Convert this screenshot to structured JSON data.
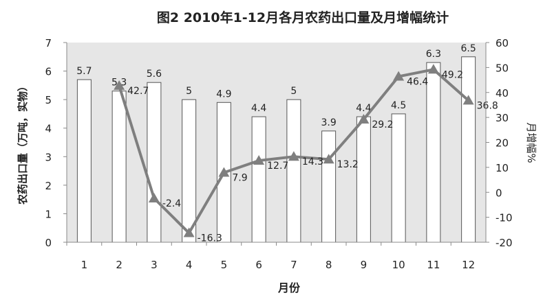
{
  "chart_data": {
    "type": "bar+line",
    "title": "图2 2010年1-12月各月农药出口量及月增幅统计",
    "xlabel": "月份",
    "ylabel": "农药出口量（万吨，实物）",
    "y2label": "月增幅%",
    "categories": [
      "1",
      "2",
      "3",
      "4",
      "5",
      "6",
      "7",
      "8",
      "9",
      "10",
      "11",
      "12"
    ],
    "ylim": [
      0,
      7
    ],
    "y2lim": [
      -20,
      60
    ],
    "yticks": [
      0,
      1,
      2,
      3,
      4,
      5,
      6,
      7
    ],
    "y2ticks": [
      -20,
      -10,
      0,
      10,
      20,
      30,
      40,
      50,
      60
    ],
    "series": [
      {
        "type": "bar",
        "axis": "left",
        "values": [
          5.7,
          5.3,
          5.6,
          5,
          4.9,
          4.4,
          5,
          3.9,
          4.4,
          4.5,
          6.3,
          6.5
        ]
      },
      {
        "type": "line",
        "axis": "right",
        "marker": "triangle",
        "values": [
          null,
          42.7,
          -2.4,
          -16.3,
          7.9,
          12.7,
          14.3,
          13.2,
          29.2,
          46.4,
          49.2,
          36.8
        ]
      }
    ],
    "colors": {
      "plot_bg": "#e6e6e6",
      "bar_fill": "#ffffff",
      "bar_stroke": "#555555",
      "line": "#7f7f7f"
    },
    "grid": false
  }
}
